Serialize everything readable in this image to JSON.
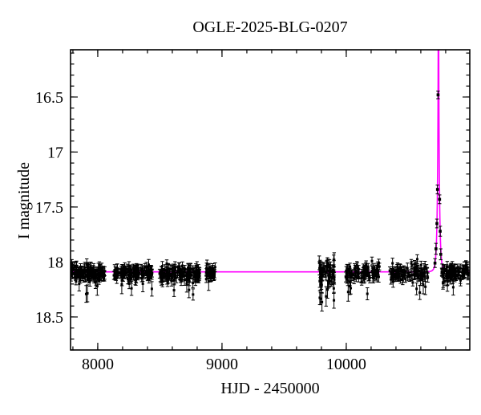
{
  "title": "OGLE-2025-BLG-0207",
  "chart_data": {
    "type": "scatter",
    "title": "OGLE-2025-BLG-0207",
    "xlabel": "HJD - 2450000",
    "ylabel": "I magnitude",
    "axes": {
      "x": {
        "label": "HJD - 2450000",
        "range": [
          7781,
          10994
        ],
        "major_ticks": [
          8000,
          9000,
          10000
        ],
        "major_tick_labels": [
          "8000",
          "9000",
          "10000"
        ],
        "minor_step": 200
      },
      "y": {
        "label": "I magnitude",
        "range": [
          18.8,
          16.07
        ],
        "inverted_magnitude_axis": true,
        "major_ticks": [
          16.5,
          17.0,
          17.5,
          18.0,
          18.5
        ],
        "major_tick_labels": [
          "16.5",
          "17",
          "17.5",
          "18",
          "18.5"
        ],
        "minor_step": 0.1
      }
    },
    "grid": false,
    "legend": false,
    "baseline_mag": 18.1,
    "marker_color": "#000000",
    "model_curve": {
      "kind": "paczynski",
      "color": "#ff00ff",
      "I0": 18.09,
      "t0": 10742,
      "tE": 15,
      "u0": 0.05,
      "peak_off_scale": true
    },
    "seasons": [
      {
        "x_range": [
          7781,
          8058
        ],
        "n": 130,
        "mag_mean": 18.1,
        "mag_sigma": 0.035,
        "err": [
          0.03,
          0.05
        ],
        "n_outliers": 5,
        "outlier_mag": [
          18.18,
          18.3
        ]
      },
      {
        "x_range": [
          8129,
          8439
        ],
        "n": 115,
        "mag_mean": 18.1,
        "mag_sigma": 0.035,
        "err": [
          0.03,
          0.05
        ],
        "n_outliers": 4,
        "outlier_mag": [
          18.18,
          18.28
        ]
      },
      {
        "x_range": [
          8497,
          8820
        ],
        "n": 130,
        "mag_mean": 18.1,
        "mag_sigma": 0.04,
        "err": [
          0.03,
          0.05
        ],
        "n_outliers": 4,
        "outlier_mag": [
          18.18,
          18.3
        ]
      },
      {
        "x_range": [
          8871,
          8949
        ],
        "n": 30,
        "mag_mean": 18.09,
        "mag_sigma": 0.035,
        "err": [
          0.03,
          0.05
        ],
        "n_outliers": 1,
        "outlier_mag": [
          18.16,
          18.22
        ]
      },
      {
        "x_range": [
          9781,
          9904
        ],
        "n": 55,
        "mag_mean": 18.11,
        "mag_sigma": 0.075,
        "err": [
          0.04,
          0.07
        ],
        "n_outliers": 5,
        "outlier_mag": [
          18.25,
          18.38
        ]
      },
      {
        "x_range": [
          9987,
          10271
        ],
        "n": 85,
        "mag_mean": 18.1,
        "mag_sigma": 0.04,
        "err": [
          0.03,
          0.05
        ],
        "n_outliers": 4,
        "outlier_mag": [
          18.18,
          18.3
        ]
      },
      {
        "x_range": [
          10348,
          10658
        ],
        "n": 95,
        "mag_mean": 18.1,
        "mag_sigma": 0.04,
        "err": [
          0.03,
          0.05
        ],
        "n_outliers": 4,
        "outlier_mag": [
          18.18,
          18.28
        ]
      },
      {
        "x_range": [
          10768,
          10990
        ],
        "n": 85,
        "mag_mean": 18.1,
        "mag_sigma": 0.04,
        "err": [
          0.03,
          0.05
        ],
        "n_outliers": 3,
        "outlier_mag": [
          18.18,
          18.28
        ]
      }
    ],
    "highlighted_points": [
      {
        "t": 10714.0,
        "mag": 18.01,
        "err": 0.04
      },
      {
        "t": 10722.0,
        "mag": 17.88,
        "err": 0.05
      },
      {
        "t": 10729.5,
        "mag": 17.65,
        "err": 0.04
      },
      {
        "t": 10734.0,
        "mag": 17.34,
        "err": 0.04
      },
      {
        "t": 10738.5,
        "mag": 16.48,
        "err": 0.035
      },
      {
        "t": 10751.0,
        "mag": 17.43,
        "err": 0.04
      },
      {
        "t": 10756.0,
        "mag": 17.72,
        "err": 0.045
      },
      {
        "t": 10760.5,
        "mag": 17.93,
        "err": 0.05
      }
    ],
    "random_seed": 42
  }
}
